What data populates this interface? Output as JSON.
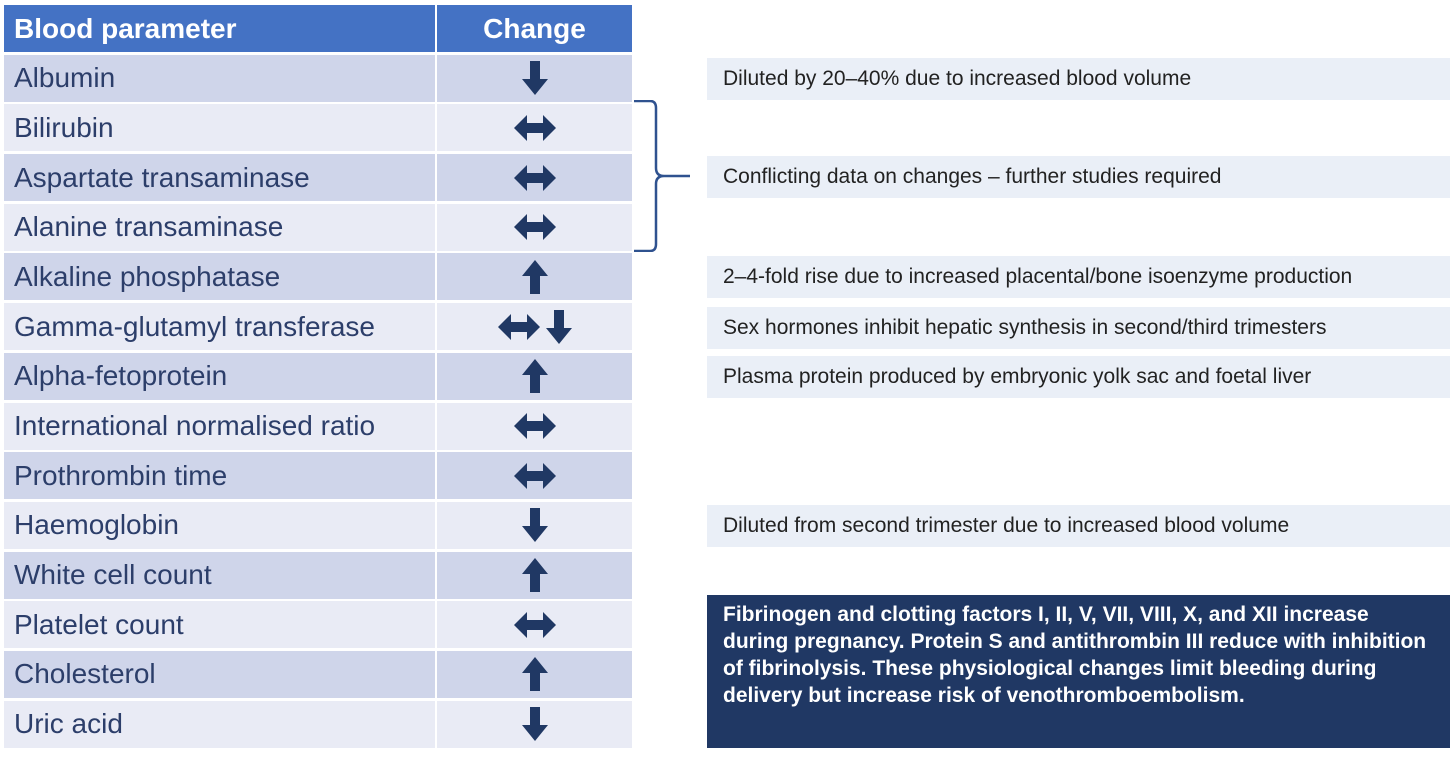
{
  "table": {
    "headers": {
      "parameter": "Blood parameter",
      "change": "Change"
    },
    "rows": [
      {
        "parameter": "Albumin",
        "change": [
          "down"
        ]
      },
      {
        "parameter": "Bilirubin",
        "change": [
          "both"
        ]
      },
      {
        "parameter": "Aspartate transaminase",
        "change": [
          "both"
        ]
      },
      {
        "parameter": "Alanine transaminase",
        "change": [
          "both"
        ]
      },
      {
        "parameter": "Alkaline phosphatase",
        "change": [
          "up"
        ]
      },
      {
        "parameter": "Gamma-glutamyl transferase",
        "change": [
          "both",
          "down"
        ]
      },
      {
        "parameter": "Alpha-fetoprotein",
        "change": [
          "up"
        ]
      },
      {
        "parameter": "International normalised ratio",
        "change": [
          "both"
        ]
      },
      {
        "parameter": "Prothrombin time",
        "change": [
          "both"
        ]
      },
      {
        "parameter": "Haemoglobin",
        "change": [
          "down"
        ]
      },
      {
        "parameter": "White cell count",
        "change": [
          "up"
        ]
      },
      {
        "parameter": "Platelet count",
        "change": [
          "both"
        ]
      },
      {
        "parameter": "Cholesterol",
        "change": [
          "up"
        ]
      },
      {
        "parameter": "Uric acid",
        "change": [
          "down"
        ]
      }
    ]
  },
  "notes": {
    "albumin": "Diluted by 20–40% due to increased blood volume",
    "conflicting": "Conflicting data on changes – further studies required",
    "alp": "2–4-fold rise due to increased placental/bone isoenzyme production",
    "ggt": "Sex hormones inhibit hepatic synthesis in second/third trimesters",
    "afp": "Plasma protein produced by embryonic yolk sac and foetal liver",
    "hb": "Diluted from second trimester due to increased blood volume"
  },
  "info_box": "Fibrinogen and clotting factors I, II, V, VII, VIII, X, and XII increase during pregnancy. Protein S and antithrombin III reduce with inhibition of fibrinolysis. These physiological changes limit bleeding during delivery but increase risk of venothromboembolism.",
  "colors": {
    "header": "#4472c4",
    "row_dark": "#cfd5ea",
    "row_light": "#e9ebf5",
    "arrow": "#203864",
    "info_box": "#203864",
    "note_bg": "#eaeff7"
  },
  "icons": {
    "down": "arrow-down-icon",
    "up": "arrow-up-icon",
    "both": "arrow-left-right-icon"
  }
}
